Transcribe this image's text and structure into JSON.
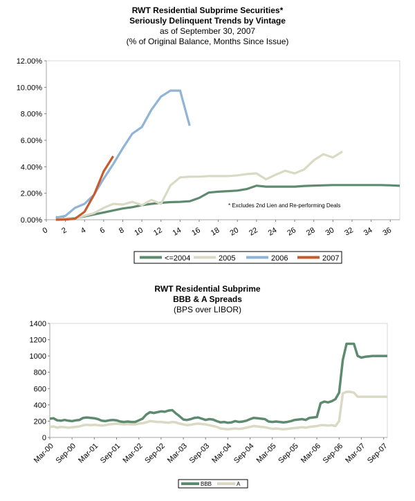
{
  "chart_data": [
    {
      "type": "line",
      "title": "RWT Residential Subprime Securities*",
      "subtitle": "Seriously Delinquent Trends by Vintage",
      "subtitle2": "as of September 30, 2007",
      "subtitle3": "(% of Original Balance, Months Since Issue)",
      "annotation": "* Excludes 2nd Lien and Re-performing Deals",
      "xlim": [
        0,
        37
      ],
      "ylim": [
        0,
        12
      ],
      "xticks": [
        "0",
        "2",
        "4",
        "6",
        "8",
        "10",
        "12",
        "14",
        "16",
        "18",
        "20",
        "22",
        "24",
        "26",
        "28",
        "30",
        "32",
        "34",
        "36"
      ],
      "yticks": [
        "0.00%",
        "2.00%",
        "4.00%",
        "6.00%",
        "8.00%",
        "10.00%",
        "12.00%"
      ],
      "legend_position": "bottom",
      "series": [
        {
          "name": "<=2004",
          "color": "#5e8a6f",
          "x": [
            1,
            2,
            3,
            4,
            5,
            6,
            7,
            8,
            9,
            10,
            11,
            12,
            13,
            14,
            15,
            16,
            17,
            18,
            19,
            20,
            21,
            22,
            23,
            24,
            25,
            26,
            27,
            28,
            29,
            30,
            31,
            32,
            33,
            34,
            35,
            36,
            37
          ],
          "y": [
            0.2,
            0.08,
            0.12,
            0.25,
            0.4,
            0.55,
            0.7,
            0.85,
            0.95,
            1.1,
            1.2,
            1.28,
            1.33,
            1.35,
            1.4,
            1.65,
            2.05,
            2.12,
            2.16,
            2.2,
            2.32,
            2.57,
            2.5,
            2.5,
            2.5,
            2.5,
            2.55,
            2.58,
            2.6,
            2.62,
            2.62,
            2.62,
            2.62,
            2.62,
            2.62,
            2.6,
            2.56
          ]
        },
        {
          "name": "2005",
          "color": "#d9d9c4",
          "x": [
            1,
            2,
            3,
            4,
            5,
            6,
            7,
            8,
            9,
            10,
            11,
            12,
            13,
            14,
            15,
            16,
            17,
            18,
            19,
            20,
            21,
            22,
            23,
            24,
            25,
            26,
            27,
            28,
            29,
            30,
            31
          ],
          "y": [
            0.05,
            0.08,
            0.1,
            0.3,
            0.5,
            0.9,
            1.2,
            1.15,
            1.35,
            1.1,
            1.5,
            1.2,
            2.6,
            3.2,
            3.25,
            3.25,
            3.3,
            3.3,
            3.3,
            3.35,
            3.45,
            3.5,
            3.05,
            3.4,
            3.7,
            3.5,
            3.8,
            4.5,
            4.95,
            4.7,
            5.15
          ]
        },
        {
          "name": "2006",
          "color": "#8fb4d6",
          "x": [
            1,
            2,
            3,
            4,
            5,
            6,
            7,
            8,
            9,
            10,
            11,
            12,
            13,
            14,
            15
          ],
          "y": [
            0.15,
            0.3,
            0.9,
            1.2,
            1.9,
            3.1,
            4.2,
            5.4,
            6.5,
            7.0,
            8.3,
            9.3,
            9.75,
            9.75,
            7.1
          ]
        },
        {
          "name": "2007",
          "color": "#c65b2e",
          "x": [
            1,
            2,
            3,
            4,
            5,
            6,
            7
          ],
          "y": [
            0.0,
            0.02,
            0.08,
            0.6,
            1.9,
            3.65,
            4.8
          ]
        }
      ]
    },
    {
      "type": "line",
      "title": "RWT Residential Subprime",
      "subtitle": "BBB & A Spreads",
      "subtitle2": "(BPS over LIBOR)",
      "categories": [
        "Mar-00",
        "Sep-00",
        "Mar-01",
        "Sep-01",
        "Mar-02",
        "Sep-02",
        "Mar-03",
        "Sep-03",
        "Mar-04",
        "Sep-04",
        "Mar-05",
        "Sep-05",
        "Mar-06",
        "Sep-06",
        "Mar-07",
        "Sep-07"
      ],
      "xlim": [
        0,
        91
      ],
      "ylim": [
        0,
        1400
      ],
      "yticks": [
        "0",
        "200",
        "400",
        "600",
        "800",
        "1000",
        "1200",
        "1400"
      ],
      "legend_position": "bottom",
      "series": [
        {
          "name": "BBB",
          "color": "#5e8a6f",
          "x": [
            0,
            1,
            2,
            3,
            4,
            5,
            6,
            7,
            8,
            9,
            10,
            11,
            12,
            13,
            14,
            15,
            16,
            17,
            18,
            19,
            20,
            21,
            22,
            23,
            24,
            25,
            26,
            27,
            28,
            29,
            30,
            31,
            32,
            33,
            34,
            35,
            36,
            37,
            38,
            39,
            40,
            41,
            42,
            43,
            44,
            45,
            46,
            47,
            48,
            49,
            50,
            51,
            52,
            53,
            54,
            55,
            56,
            57,
            58,
            59,
            60,
            61,
            62,
            63,
            64,
            65,
            66,
            67,
            68,
            69,
            70,
            71,
            72,
            73,
            74,
            75,
            76,
            77,
            78,
            79,
            80,
            81,
            82,
            83,
            84,
            85,
            86,
            87,
            88,
            89,
            90,
            91
          ],
          "y": [
            230,
            235,
            210,
            205,
            215,
            205,
            200,
            210,
            215,
            240,
            245,
            240,
            235,
            225,
            205,
            200,
            210,
            215,
            210,
            195,
            190,
            195,
            190,
            190,
            210,
            230,
            280,
            310,
            300,
            310,
            320,
            315,
            330,
            335,
            295,
            260,
            220,
            215,
            225,
            240,
            245,
            230,
            215,
            225,
            220,
            200,
            185,
            190,
            180,
            185,
            200,
            190,
            195,
            205,
            225,
            240,
            235,
            230,
            225,
            195,
            190,
            195,
            190,
            185,
            190,
            200,
            215,
            220,
            225,
            215,
            240,
            245,
            250,
            420,
            440,
            430,
            445,
            470,
            550,
            950,
            1150,
            1150,
            1150,
            1000,
            980,
            990,
            995,
            1000,
            1000,
            1000,
            1000,
            1000
          ]
        },
        {
          "name": "A",
          "color": "#d9d9c4",
          "x": [
            0,
            1,
            2,
            3,
            4,
            5,
            6,
            7,
            8,
            9,
            10,
            11,
            12,
            13,
            14,
            15,
            16,
            17,
            18,
            19,
            20,
            21,
            22,
            23,
            24,
            25,
            26,
            27,
            28,
            29,
            30,
            31,
            32,
            33,
            34,
            35,
            36,
            37,
            38,
            39,
            40,
            41,
            42,
            43,
            44,
            45,
            46,
            47,
            48,
            49,
            50,
            51,
            52,
            53,
            54,
            55,
            56,
            57,
            58,
            59,
            60,
            61,
            62,
            63,
            64,
            65,
            66,
            67,
            68,
            69,
            70,
            71,
            72,
            73,
            74,
            75,
            76,
            77,
            78,
            79,
            80,
            81,
            82,
            83,
            84,
            85,
            86,
            87,
            88,
            89,
            90,
            91
          ],
          "y": [
            130,
            135,
            120,
            130,
            125,
            120,
            125,
            130,
            135,
            150,
            155,
            150,
            155,
            150,
            145,
            150,
            160,
            165,
            170,
            165,
            160,
            165,
            160,
            160,
            170,
            175,
            185,
            200,
            195,
            190,
            190,
            185,
            180,
            190,
            185,
            170,
            160,
            150,
            155,
            165,
            170,
            165,
            160,
            150,
            140,
            130,
            110,
            105,
            100,
            105,
            110,
            105,
            110,
            120,
            130,
            140,
            135,
            130,
            125,
            115,
            105,
            110,
            105,
            100,
            105,
            110,
            115,
            120,
            125,
            120,
            130,
            135,
            140,
            150,
            150,
            145,
            150,
            140,
            200,
            540,
            560,
            560,
            550,
            500,
            500,
            500,
            500,
            500,
            500,
            500,
            500,
            500
          ]
        }
      ]
    }
  ]
}
